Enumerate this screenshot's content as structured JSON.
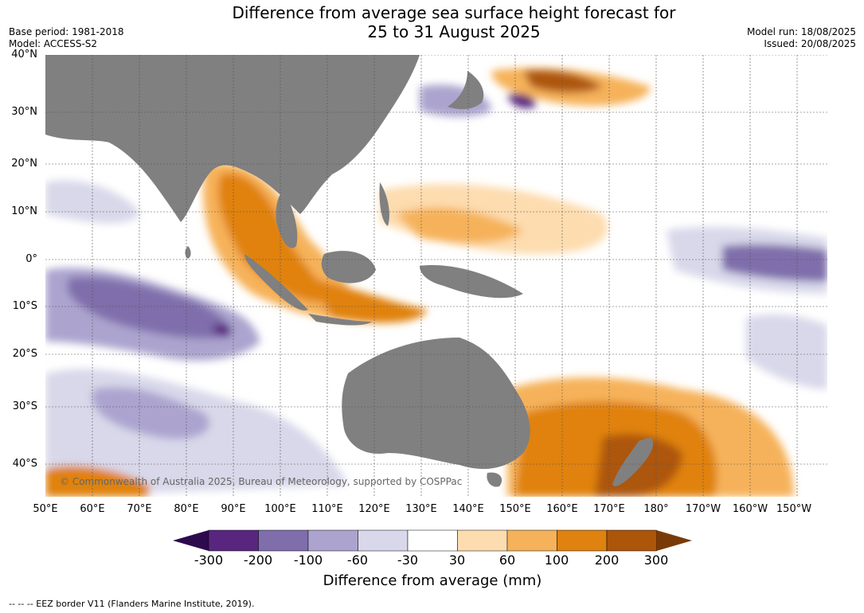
{
  "title_line1": "Difference from average sea surface height forecast for",
  "title_line2": "25 to 31 August 2025",
  "base_period": "Base period: 1981-2018",
  "model": "Model: ACCESS-S2",
  "model_run": "Model run: 18/08/2025",
  "issued": "Issued: 20/08/2025",
  "copyright": "© Commonwealth of Australia 2025, Bureau of Meteorology, supported by COSPPac",
  "lat_labels": [
    "40°N",
    "30°N",
    "20°N",
    "10°N",
    "0°",
    "10°S",
    "20°S",
    "30°S",
    "40°S"
  ],
  "lon_labels": [
    "50°E",
    "60°E",
    "70°E",
    "80°E",
    "90°E",
    "100°E",
    "110°E",
    "120°E",
    "130°E",
    "140°E",
    "150°E",
    "160°E",
    "170°E",
    "180°",
    "170°W",
    "160°W",
    "150°W"
  ],
  "colorbar": {
    "ticks": [
      "-300",
      "-200",
      "-100",
      "-60",
      "-30",
      "30",
      "60",
      "100",
      "200",
      "300"
    ],
    "colors": [
      "#2d0a4e",
      "#58267f",
      "#7f6eab",
      "#aca4cf",
      "#d8d8ea",
      "#ffffff",
      "#fddcaf",
      "#f6b25a",
      "#e0820f",
      "#ad560a",
      "#7a3a07"
    ],
    "title": "Difference from average (mm)"
  },
  "colors": {
    "land": "#808080",
    "ocean_neutral": "#ffffff"
  },
  "footer": "--  --  -- EEZ border V11 (Flanders Marine Institute, 2019)."
}
